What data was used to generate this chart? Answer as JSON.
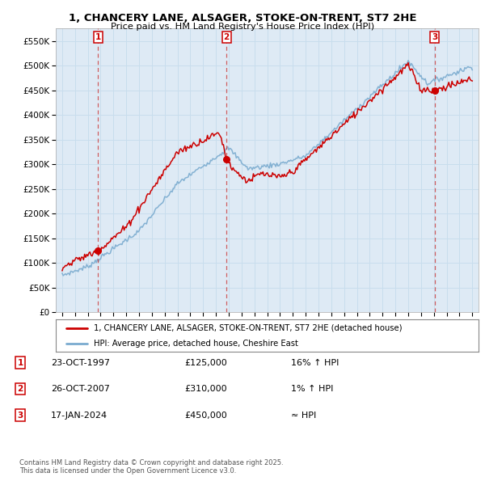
{
  "title1": "1, CHANCERY LANE, ALSAGER, STOKE-ON-TRENT, ST7 2HE",
  "title2": "Price paid vs. HM Land Registry's House Price Index (HPI)",
  "legend_line1": "1, CHANCERY LANE, ALSAGER, STOKE-ON-TRENT, ST7 2HE (detached house)",
  "legend_line2": "HPI: Average price, detached house, Cheshire East",
  "footnote": "Contains HM Land Registry data © Crown copyright and database right 2025.\nThis data is licensed under the Open Government Licence v3.0.",
  "sale_labels": [
    {
      "n": "1",
      "date": "23-OCT-1997",
      "price": "£125,000",
      "hpi": "16% ↑ HPI"
    },
    {
      "n": "2",
      "date": "26-OCT-2007",
      "price": "£310,000",
      "hpi": "1% ↑ HPI"
    },
    {
      "n": "3",
      "date": "17-JAN-2024",
      "price": "£450,000",
      "hpi": "≈ HPI"
    }
  ],
  "sale_years": [
    1997.81,
    2007.82,
    2024.05
  ],
  "sale_prices": [
    125000,
    310000,
    450000
  ],
  "red_line_color": "#cc0000",
  "blue_line_color": "#7aabcf",
  "grid_color": "#c8dded",
  "dashed_line_color": "#cc4444",
  "ylim": [
    0,
    575000
  ],
  "yticks": [
    0,
    50000,
    100000,
    150000,
    200000,
    250000,
    300000,
    350000,
    400000,
    450000,
    500000,
    550000
  ],
  "xlim_start": 1994.5,
  "xlim_end": 2027.5,
  "background_color": "#ffffff",
  "plot_bg_color": "#deeaf5"
}
